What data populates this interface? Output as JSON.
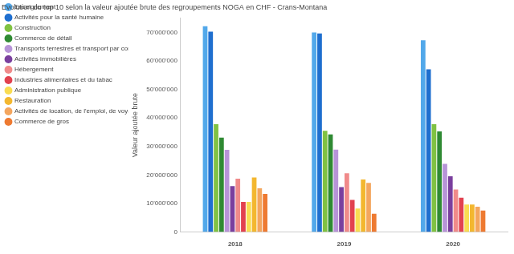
{
  "chart_data": {
    "type": "bar",
    "title": "Evolution du top 10 selon la valeur ajoutée brute des regroupements NOGA en CHF - Crans-Montana",
    "y_label": "Valeur ajoutée brute",
    "categories": [
      "2018",
      "2019",
      "2020"
    ],
    "series": [
      {
        "name": "Enseignement",
        "color": "#52a8ea",
        "values": [
          72200000,
          70000000,
          67300000
        ]
      },
      {
        "name": "Activités pour la santé humaine",
        "color": "#1f6fcf",
        "values": [
          70300000,
          69700000,
          57100000
        ]
      },
      {
        "name": "Construction",
        "color": "#80c242",
        "values": [
          37800000,
          35500000,
          37800000
        ]
      },
      {
        "name": "Commerce de détail",
        "color": "#2f8a33",
        "values": [
          33100000,
          34200000,
          35300000
        ]
      },
      {
        "name": "Transports terrestres et transport par con...",
        "color": "#b794d8",
        "values": [
          28800000,
          28900000,
          23900000
        ]
      },
      {
        "name": "Activités immobilières",
        "color": "#7a3f9e",
        "values": [
          16100000,
          15700000,
          19500000
        ]
      },
      {
        "name": "Hébergement",
        "color": "#f08a8a",
        "values": [
          18700000,
          20600000,
          14900000
        ]
      },
      {
        "name": "Industries alimentaires et du tabac",
        "color": "#e2424f",
        "values": [
          10500000,
          11200000,
          12000000
        ]
      },
      {
        "name": "Administration publique",
        "color": "#f9dc52",
        "values": [
          10500000,
          8200000,
          9600000
        ]
      },
      {
        "name": "Restauration",
        "color": "#f3b72f",
        "values": [
          19100000,
          18400000,
          9600000
        ]
      },
      {
        "name": "Activités de location, de l'emploi, de voyag...",
        "color": "#f4a65e",
        "values": [
          15300000,
          17200000,
          8800000
        ]
      },
      {
        "name": "Commerce de gros",
        "color": "#ee7a31",
        "values": [
          13300000,
          6400000,
          7500000
        ]
      }
    ],
    "ylim": [
      0,
      75000000
    ],
    "yticks": [
      0,
      {
        "value": 10000000,
        "label": "10'000'000"
      },
      {
        "value": 20000000,
        "label": "20'000'000"
      },
      {
        "value": 30000000,
        "label": "30'000'000"
      },
      {
        "value": 40000000,
        "label": "40'000'000"
      },
      {
        "value": 50000000,
        "label": "50'000'000"
      },
      {
        "value": 60000000,
        "label": "60'000'000"
      },
      {
        "value": 70000000,
        "label": "70'000'000"
      }
    ],
    "grid": false,
    "legend": "left"
  }
}
